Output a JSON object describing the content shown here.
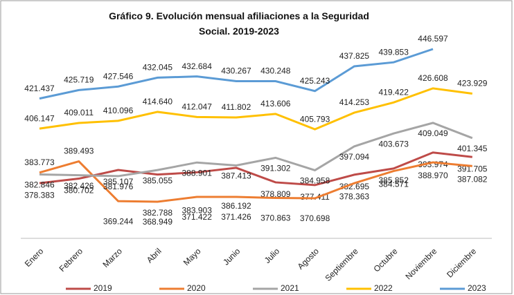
{
  "chart_data": {
    "type": "line",
    "title": "Gráfico 9. Evolución mensual afiliaciones a la Seguridad Social. 2019-2023",
    "categories": [
      "Enero",
      "Febrero",
      "Marzo",
      "Abril",
      "Mayo",
      "Junio",
      "Julio",
      "Agosto",
      "Septiembre",
      "Octubre",
      "Noviembre",
      "Diciembre"
    ],
    "series": [
      {
        "name": "2019",
        "color": "#be4b48",
        "values": [
          378383,
          380702,
          385107,
          382788,
          383903,
          386192,
          378809,
          377411,
          382695,
          385852,
          393974,
          391705
        ],
        "value_labels": [
          "378.383",
          "380.702",
          "385.107",
          "382.788",
          "383.903",
          "386.192",
          "378.809",
          "377.411",
          "382.695",
          "385.852",
          "393.974",
          "391.705"
        ]
      },
      {
        "name": "2020",
        "color": "#ed7d31",
        "values": [
          383773,
          389493,
          369244,
          368949,
          371422,
          371426,
          370863,
          370698,
          378363,
          384571,
          388970,
          387082
        ],
        "value_labels": [
          "383.773",
          "389.493",
          "369.244",
          "368.949",
          "371.422",
          "371.426",
          "370.863",
          "370.698",
          "378.363",
          "384.571",
          "388.970",
          "387.082"
        ]
      },
      {
        "name": "2021",
        "color": "#a5a5a5",
        "values": [
          382846,
          382426,
          381976,
          385055,
          388901,
          387413,
          391302,
          384958,
          397094,
          403673,
          409049,
          401345
        ],
        "value_labels": [
          "382.846",
          "382.426",
          "381.976",
          "385.055",
          "388.901",
          "387.413",
          "391.302",
          "384.958",
          "397.094",
          "403.673",
          "409.049",
          "401.345"
        ]
      },
      {
        "name": "2022",
        "color": "#ffc000",
        "values": [
          406147,
          409011,
          410096,
          414640,
          412047,
          411802,
          413606,
          405793,
          414253,
          419422,
          426608,
          423929
        ],
        "value_labels": [
          "406.147",
          "409.011",
          "410.096",
          "414.640",
          "412.047",
          "411.802",
          "413.606",
          "405.793",
          "414.253",
          "419.422",
          "426.608",
          "423.929"
        ]
      },
      {
        "name": "2023",
        "color": "#5b9bd5",
        "values": [
          421437,
          425719,
          427546,
          432045,
          432684,
          430267,
          430248,
          425243,
          437825,
          439853,
          446597,
          null
        ],
        "value_labels": [
          "421.437",
          "425.719",
          "427.546",
          "432.045",
          "432.684",
          "430.267",
          "430.248",
          "425.243",
          "437.825",
          "439.853",
          "446.597",
          null
        ]
      }
    ]
  }
}
